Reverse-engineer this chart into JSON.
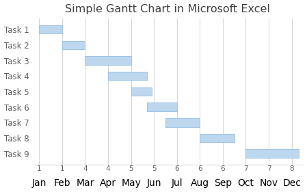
{
  "title": "Simple Gantt Chart in Microsoft Excel",
  "tasks": [
    "Task 1",
    "Task 2",
    "Task 3",
    "Task 4",
    "Task 5",
    "Task 6",
    "Task 7",
    "Task 8",
    "Task 9"
  ],
  "bars": [
    {
      "start": 0,
      "end": 1.0
    },
    {
      "start": 1.0,
      "end": 2.0
    },
    {
      "start": 2.0,
      "end": 4.0
    },
    {
      "start": 3.0,
      "end": 4.7
    },
    {
      "start": 4.0,
      "end": 4.9
    },
    {
      "start": 4.7,
      "end": 6.0
    },
    {
      "start": 5.5,
      "end": 7.0
    },
    {
      "start": 7.0,
      "end": 8.5
    },
    {
      "start": 9.0,
      "end": 11.3
    }
  ],
  "bar_color": "#BDD7EE",
  "bar_edge_color": "#9DC3E6",
  "bar_height": 0.55,
  "tick_positions": [
    0,
    1,
    2,
    3,
    4,
    5,
    6,
    7,
    8,
    9,
    10,
    11
  ],
  "tick_top_labels": [
    "1",
    "1",
    "4",
    "4",
    "5",
    "5",
    "6",
    "6",
    "6",
    "7",
    "7",
    "8"
  ],
  "tick_bottom_labels": [
    "Jan",
    "Feb",
    "Mar",
    "Apr",
    "May",
    "Jun",
    "Jul",
    "Aug",
    "Sep",
    "Oct",
    "Nov",
    "Dec"
  ],
  "xlim": [
    -0.3,
    11.5
  ],
  "ylim": [
    -0.7,
    8.7
  ],
  "background_color": "#FFFFFF",
  "grid_color": "#D4D4D4",
  "title_fontsize": 11.5,
  "label_fontsize": 8.5,
  "tick_fontsize": 7.5,
  "title_color": "#404040",
  "tick_color": "#606060"
}
